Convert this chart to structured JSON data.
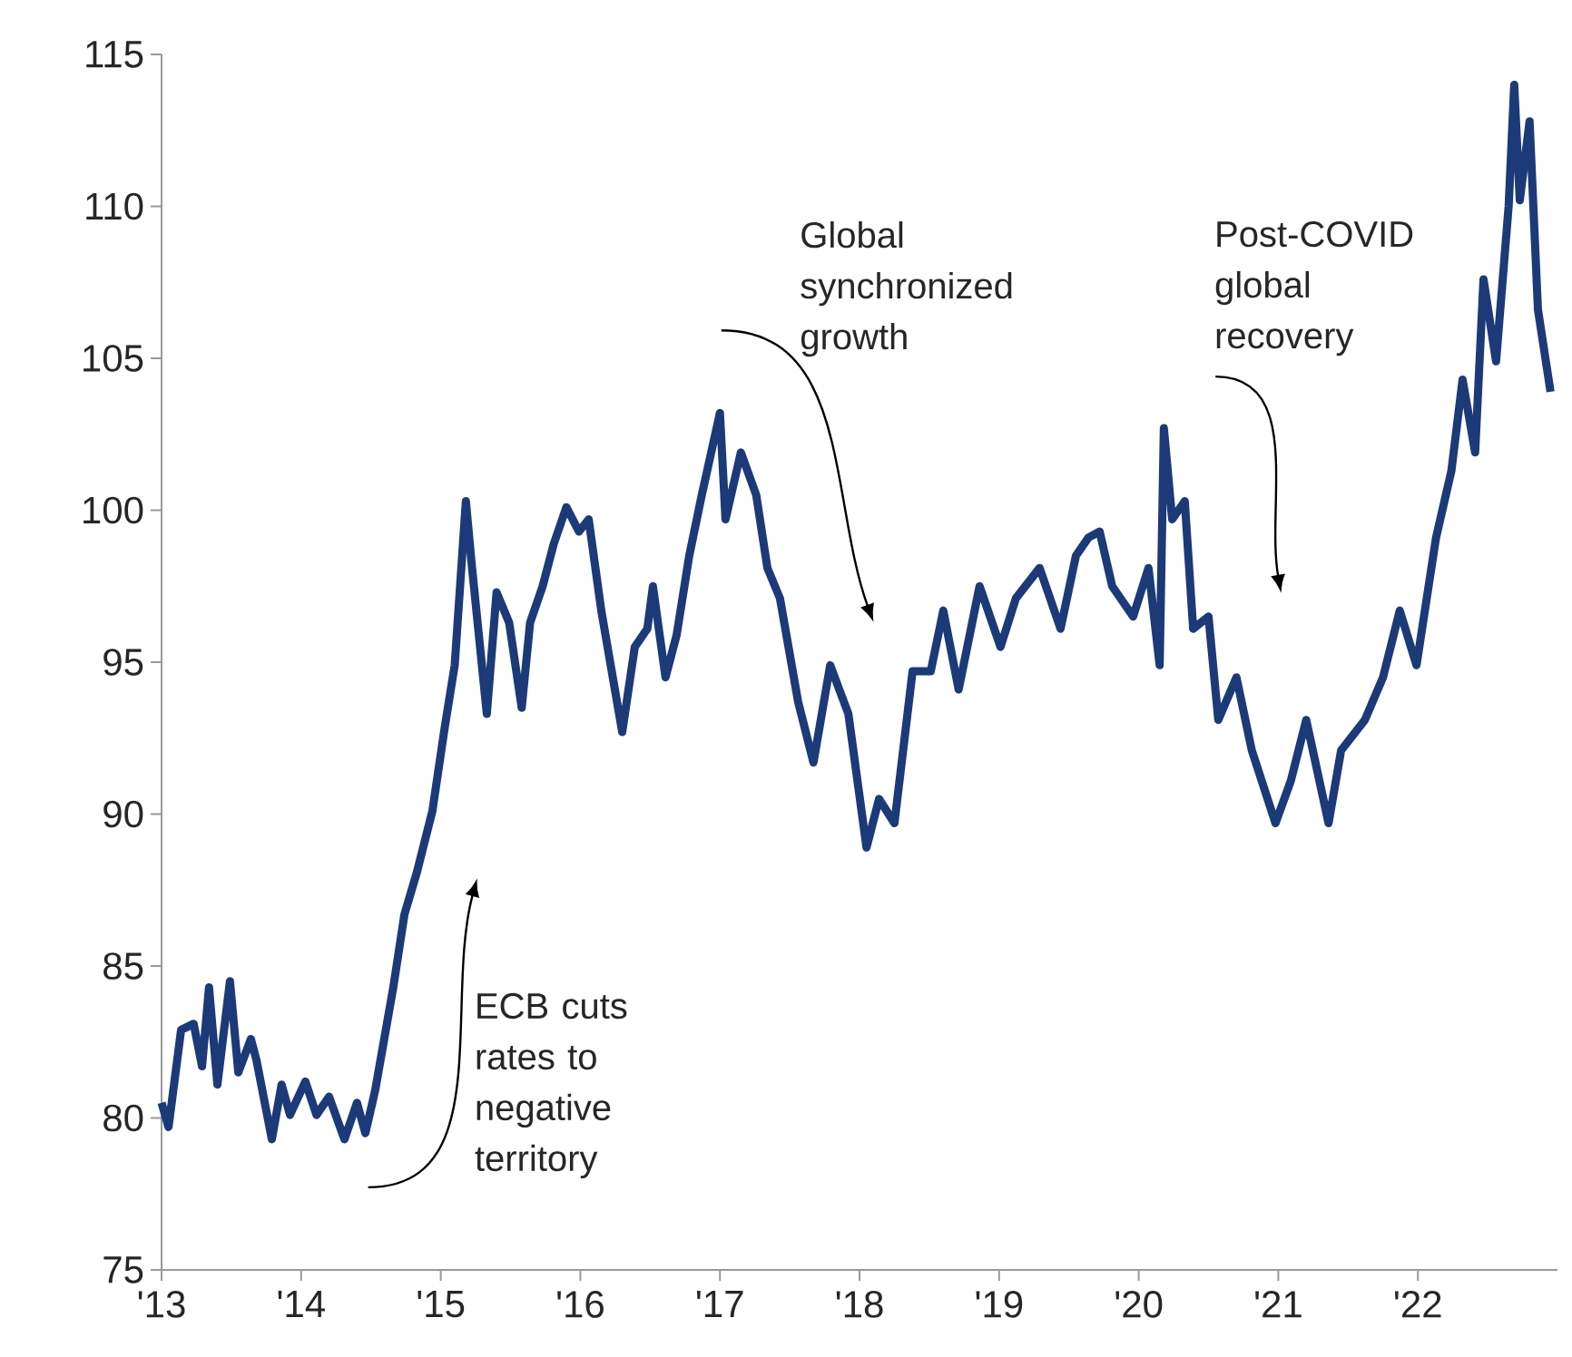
{
  "chart_data": {
    "type": "line",
    "x": [
      2013.0,
      2013.05,
      2013.14,
      2013.23,
      2013.29,
      2013.34,
      2013.4,
      2013.49,
      2013.55,
      2013.64,
      2013.68,
      2013.79,
      2013.86,
      2013.92,
      2014.03,
      2014.11,
      2014.2,
      2014.31,
      2014.4,
      2014.46,
      2014.53,
      2014.66,
      2014.74,
      2014.83,
      2014.94,
      2015.03,
      2015.1,
      2015.18,
      2015.22,
      2015.33,
      2015.4,
      2015.49,
      2015.58,
      2015.64,
      2015.73,
      2015.81,
      2015.9,
      2015.99,
      2016.06,
      2016.15,
      2016.21,
      2016.3,
      2016.39,
      2016.48,
      2016.52,
      2016.61,
      2016.69,
      2016.78,
      2016.87,
      2017.0,
      2017.04,
      2017.15,
      2017.26,
      2017.34,
      2017.43,
      2017.56,
      2017.67,
      2017.79,
      2017.92,
      2018.05,
      2018.14,
      2018.25,
      2018.38,
      2018.51,
      2018.6,
      2018.71,
      2018.86,
      2019.01,
      2019.12,
      2019.29,
      2019.44,
      2019.55,
      2019.64,
      2019.72,
      2019.81,
      2019.96,
      2020.07,
      2020.15,
      2020.18,
      2020.24,
      2020.33,
      2020.39,
      2020.5,
      2020.57,
      2020.7,
      2020.81,
      2020.98,
      2021.09,
      2021.2,
      2021.36,
      2021.45,
      2021.62,
      2021.75,
      2021.87,
      2021.99,
      2022.13,
      2022.24,
      2022.32,
      2022.41,
      2022.47,
      2022.56,
      2022.65,
      2022.69,
      2022.73,
      2022.8,
      2022.86,
      2022.95
    ],
    "series": [
      {
        "color": "#1c3a78",
        "values": [
          80.5,
          79.7,
          82.9,
          83.1,
          81.7,
          84.3,
          81.1,
          84.5,
          81.5,
          82.6,
          81.9,
          79.3,
          81.1,
          80.1,
          81.2,
          80.1,
          80.7,
          79.3,
          80.5,
          79.5,
          80.9,
          84.3,
          86.7,
          88.1,
          90.1,
          92.9,
          94.9,
          100.3,
          98.3,
          93.3,
          97.3,
          96.3,
          93.5,
          96.3,
          97.5,
          98.9,
          100.1,
          99.3,
          99.7,
          96.7,
          95.1,
          92.7,
          95.5,
          96.1,
          97.5,
          94.5,
          95.9,
          98.5,
          100.5,
          103.2,
          99.7,
          101.9,
          100.5,
          98.1,
          97.1,
          93.7,
          91.7,
          94.9,
          93.3,
          88.9,
          90.5,
          89.7,
          94.7,
          94.7,
          96.7,
          94.1,
          97.5,
          95.5,
          97.1,
          98.1,
          96.1,
          98.5,
          99.1,
          99.3,
          97.5,
          96.5,
          98.1,
          94.9,
          102.7,
          99.7,
          100.3,
          96.1,
          96.5,
          93.1,
          94.5,
          92.1,
          89.7,
          91.1,
          93.1,
          89.7,
          92.1,
          93.1,
          94.5,
          96.7,
          94.9,
          99.1,
          101.3,
          104.3,
          101.9,
          107.6,
          104.9,
          110.0,
          114.0,
          110.2,
          112.8,
          106.6,
          103.9
        ]
      }
    ],
    "xlim": [
      2013,
      2023
    ],
    "ylim": [
      75,
      115
    ],
    "xticks": [
      {
        "value": 2013,
        "label": "'13"
      },
      {
        "value": 2014,
        "label": "'14"
      },
      {
        "value": 2015,
        "label": "'15"
      },
      {
        "value": 2016,
        "label": "'16"
      },
      {
        "value": 2017,
        "label": "'17"
      },
      {
        "value": 2018,
        "label": "'18"
      },
      {
        "value": 2019,
        "label": "'19"
      },
      {
        "value": 2020,
        "label": "'20"
      },
      {
        "value": 2021,
        "label": "'21"
      },
      {
        "value": 2022,
        "label": "'22"
      }
    ],
    "yticks": [
      75,
      80,
      85,
      90,
      95,
      100,
      105,
      110,
      115
    ],
    "annotations": [
      "ECB cuts rates to negative territory",
      "Global synchronized growth",
      "Post-COVID global recovery"
    ],
    "grid": false,
    "legend": false,
    "marker": "none",
    "line_style": "solid"
  }
}
